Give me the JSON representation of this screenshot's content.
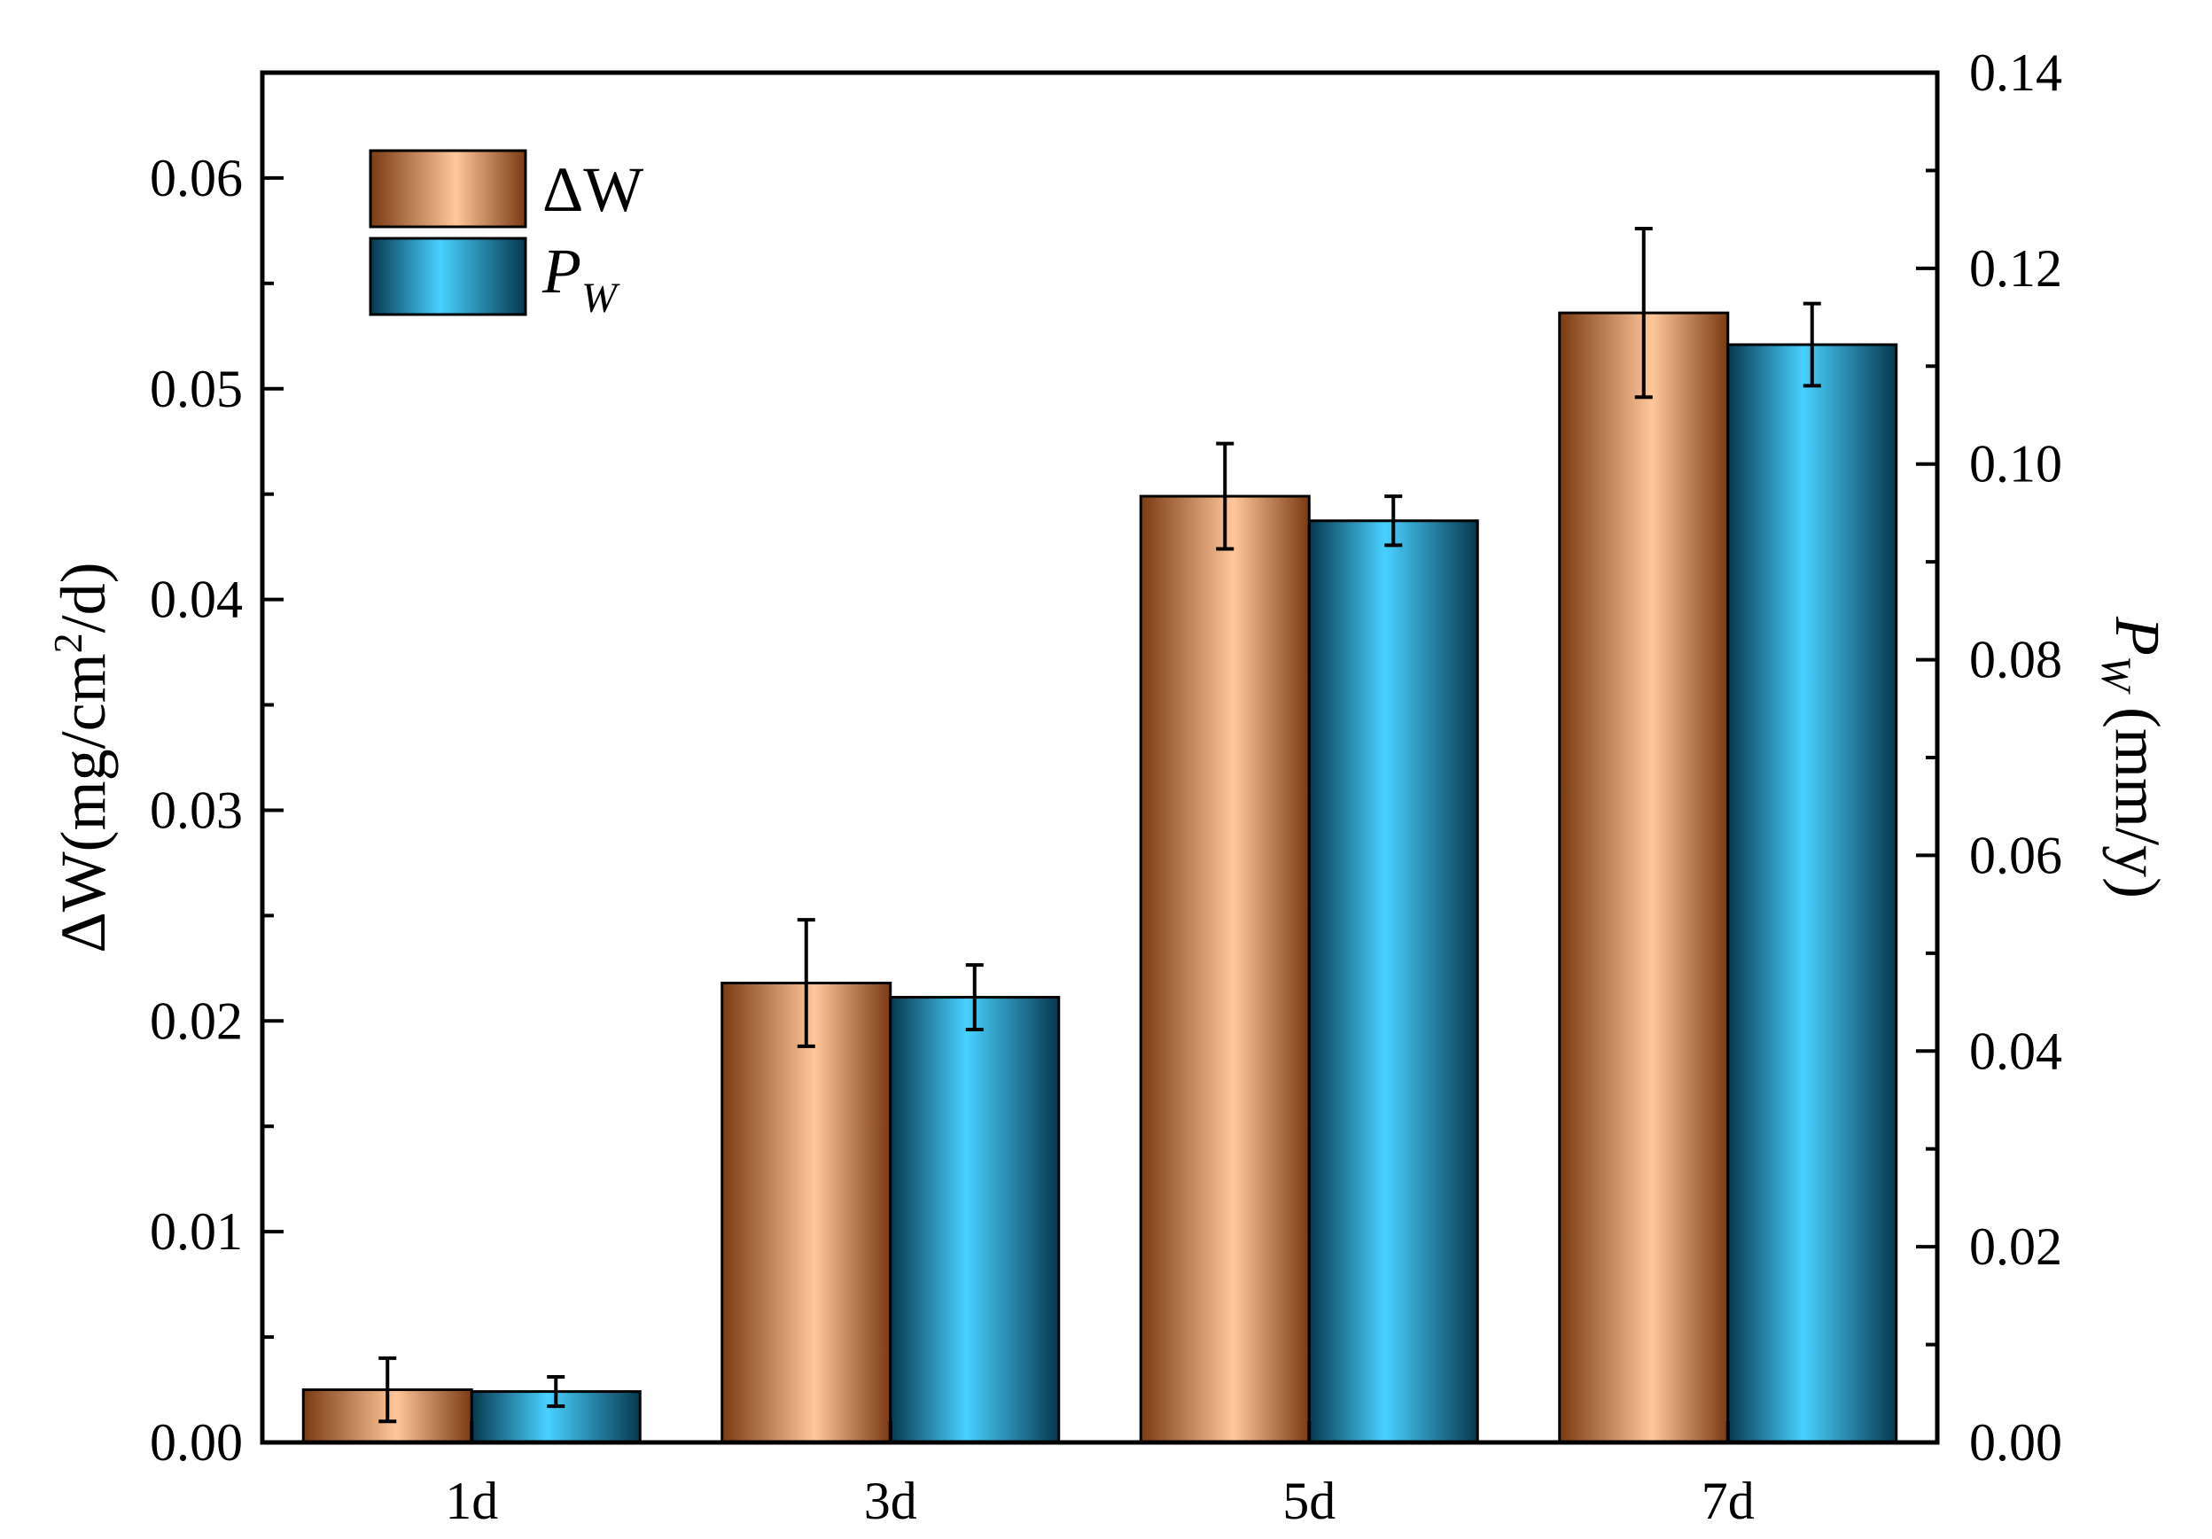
{
  "chart_data": {
    "type": "bar",
    "categories": [
      "1d",
      "3d",
      "5d",
      "7d"
    ],
    "series": [
      {
        "name": "ΔW",
        "axis": "left",
        "values": [
          0.0025,
          0.0218,
          0.0449,
          0.0536
        ],
        "errors": [
          0.0015,
          0.003,
          0.0025,
          0.004
        ]
      },
      {
        "name": "P_W",
        "axis": "right",
        "values": [
          0.0052,
          0.0455,
          0.0942,
          0.1122
        ],
        "errors": [
          0.0015,
          0.0033,
          0.0025,
          0.0042
        ]
      }
    ],
    "y_left": {
      "label": "ΔW(mg/cm²/d)",
      "ylim": [
        0,
        0.065
      ],
      "ticks": [
        "0.00",
        "0.01",
        "0.02",
        "0.03",
        "0.04",
        "0.05",
        "0.06"
      ]
    },
    "y_right": {
      "label": "P_W (mm/y)",
      "ylim": [
        0,
        0.14
      ],
      "ticks": [
        "0.00",
        "0.02",
        "0.04",
        "0.06",
        "0.08",
        "0.10",
        "0.12",
        "0.14"
      ]
    },
    "legend": {
      "position": "top-left",
      "entries": [
        "ΔW",
        "P_W"
      ]
    },
    "grid": false,
    "colors": {
      "dw_edge": "#7a3a12",
      "dw_center": "#ffc79a",
      "pw_edge": "#06384f",
      "pw_center": "#48d1ff"
    }
  }
}
